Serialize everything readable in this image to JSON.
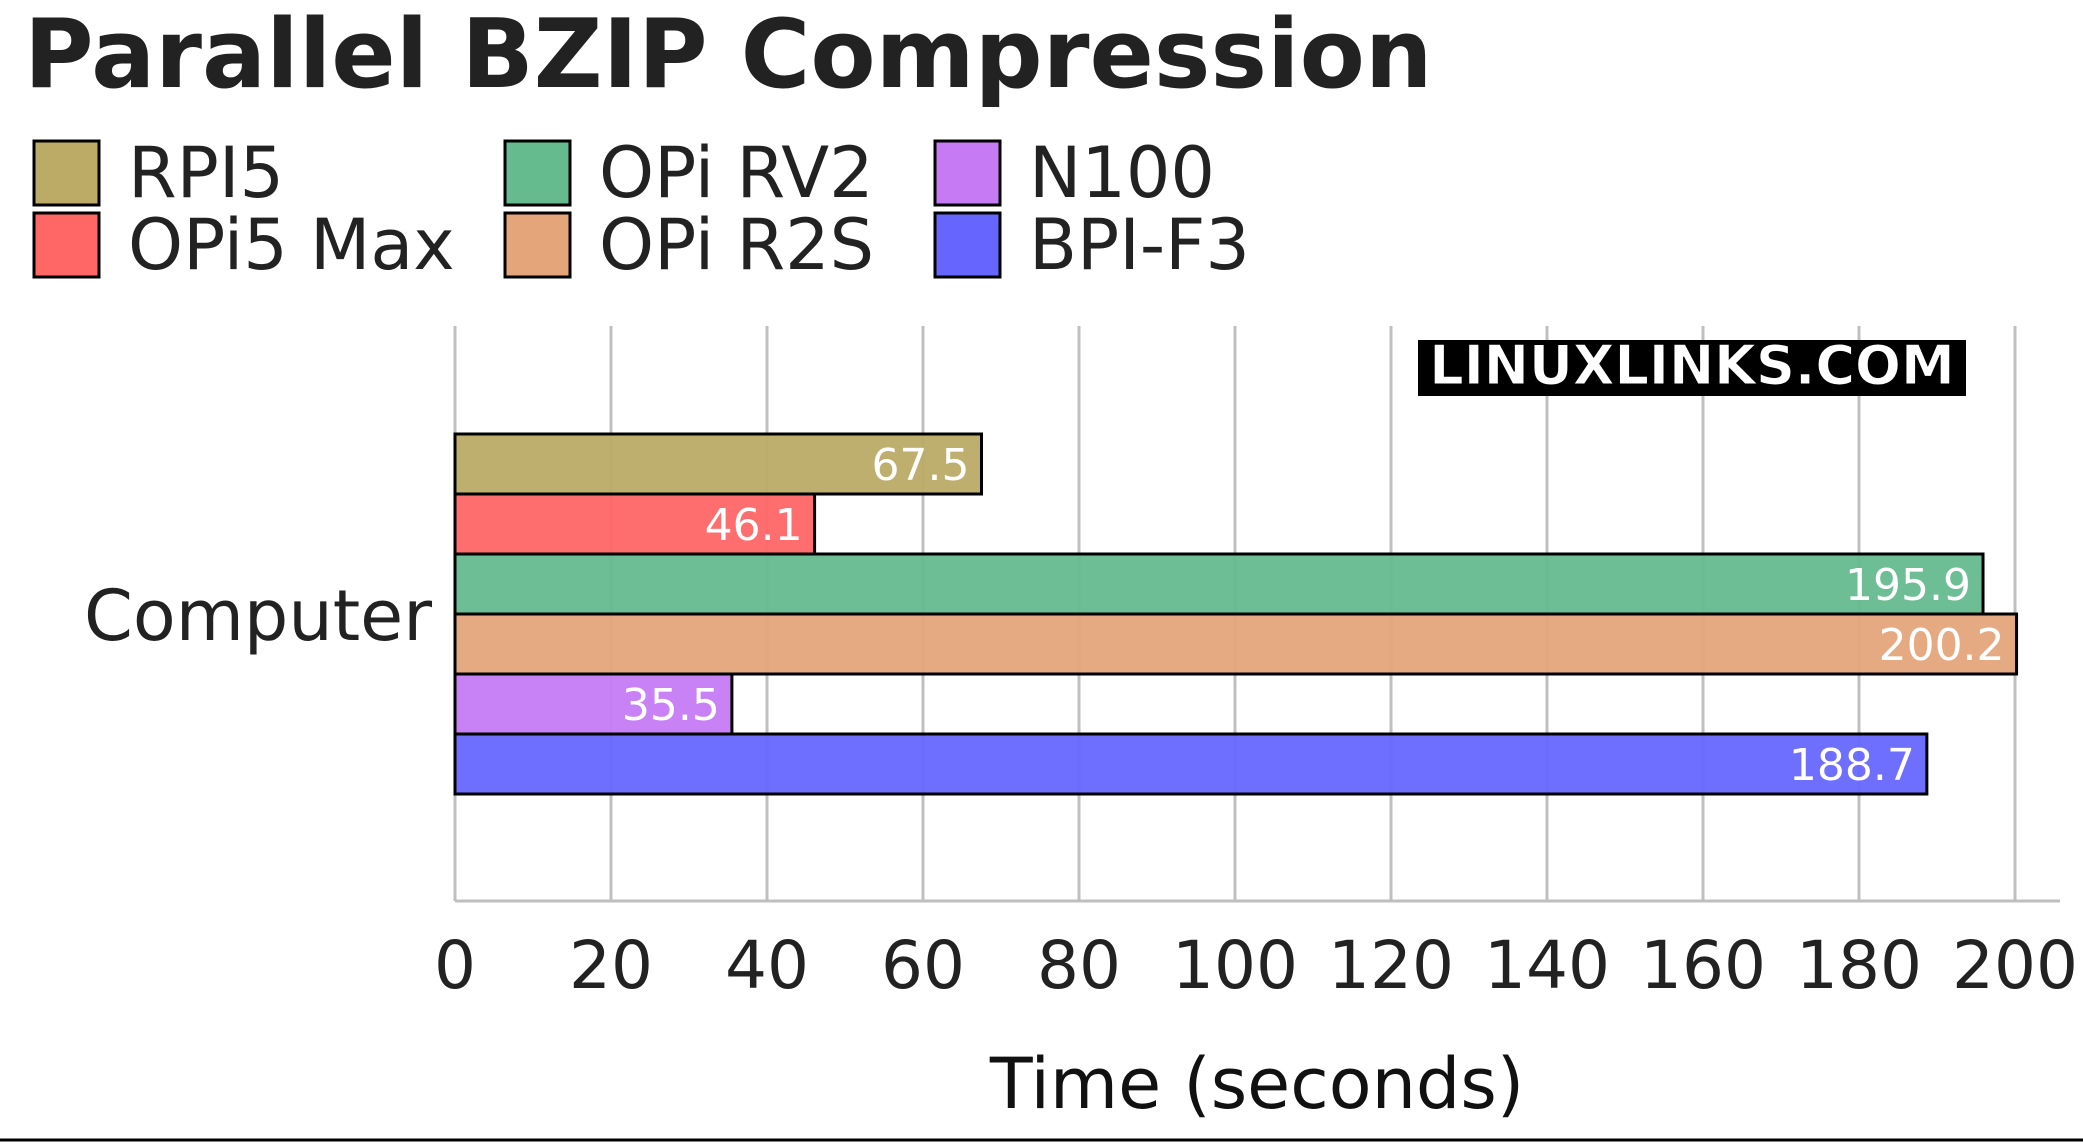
{
  "chart_data": {
    "type": "bar",
    "orientation": "horizontal",
    "title": "Parallel BZIP Compression",
    "xlabel": "Time (seconds)",
    "ylabel": "",
    "categories": [
      "Computer"
    ],
    "xlim": [
      0,
      200
    ],
    "xticks": [
      0,
      20,
      40,
      60,
      80,
      100,
      120,
      140,
      160,
      180,
      200
    ],
    "grid": true,
    "legend_position": "top-left",
    "watermark": "LINUXLINKS.COM",
    "series": [
      {
        "name": "RPI5",
        "values": [
          67.5
        ],
        "color": "#bbab66"
      },
      {
        "name": "OPi5 Max",
        "values": [
          46.1
        ],
        "color": "#ff6666"
      },
      {
        "name": "OPi RV2",
        "values": [
          195.9
        ],
        "color": "#65bb8e"
      },
      {
        "name": "OPi R2S",
        "values": [
          200.2
        ],
        "color": "#e4a57b"
      },
      {
        "name": "N100",
        "values": [
          35.5
        ],
        "color": "#c67bf5"
      },
      {
        "name": "BPI-F3",
        "values": [
          188.7
        ],
        "color": "#6666ff"
      }
    ],
    "legend_order": [
      "RPI5",
      "OPi RV2",
      "N100",
      "OPi5 Max",
      "OPi R2S",
      "BPI-F3"
    ]
  }
}
